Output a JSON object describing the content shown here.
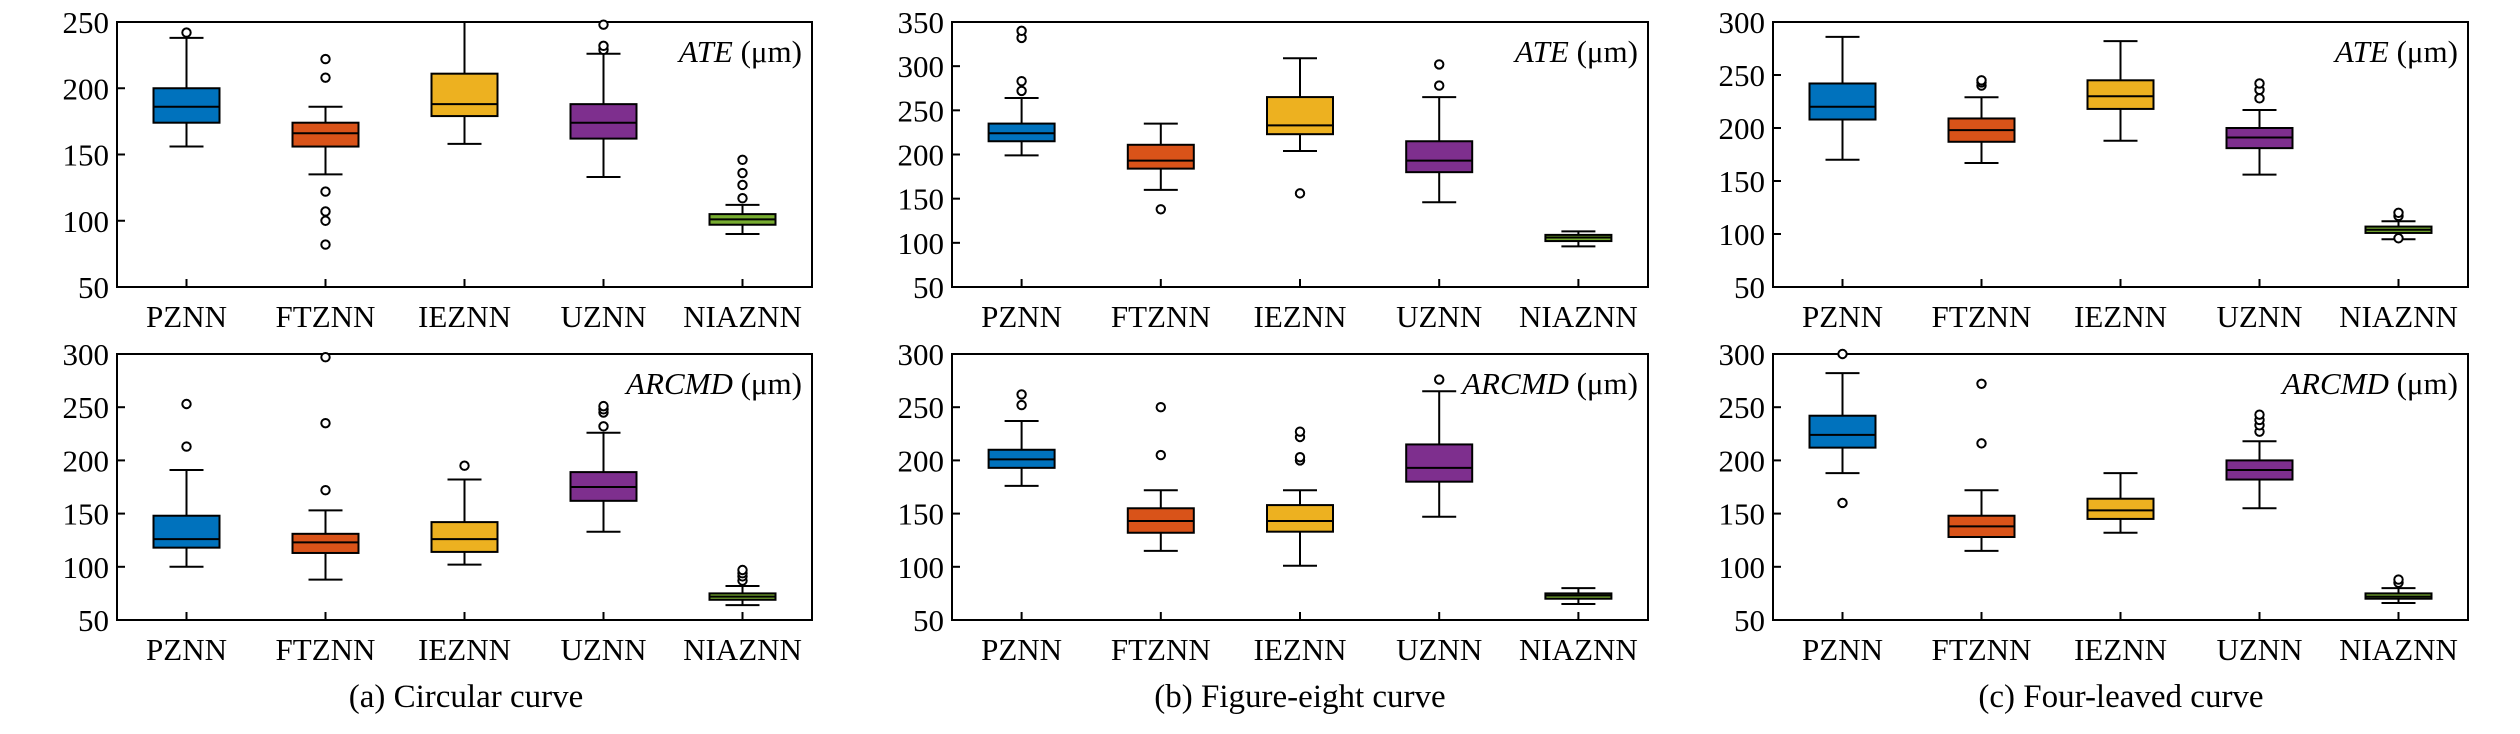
{
  "colors": {
    "PZNN": "#0072BD",
    "FTZNN": "#D95319",
    "IEZNN": "#EDB120",
    "UZNN": "#7E2F8E",
    "NIAZNN": "#77AC30"
  },
  "chart_data": [
    {
      "type": "box",
      "caption": "(a) Circular curve",
      "metric": "ATE",
      "unit": "(μm)",
      "categories": [
        "PZNN",
        "FTZNN",
        "IEZNN",
        "UZNN",
        "NIAZNN"
      ],
      "ylim": [
        50,
        250
      ],
      "yticks": [
        50,
        100,
        150,
        200,
        250
      ],
      "boxes": [
        {
          "q1": 174,
          "median": 186,
          "q3": 200,
          "whisker_low": 156,
          "whisker_high": 238,
          "outliers": [
            242
          ]
        },
        {
          "q1": 156,
          "median": 166,
          "q3": 174,
          "whisker_low": 135,
          "whisker_high": 186,
          "outliers": [
            208,
            222,
            122,
            107,
            100,
            82
          ]
        },
        {
          "q1": 179,
          "median": 188,
          "q3": 211,
          "whisker_low": 158,
          "whisker_high": 250,
          "outliers": []
        },
        {
          "q1": 162,
          "median": 174,
          "q3": 188,
          "whisker_low": 133,
          "whisker_high": 226,
          "outliers": [
            229,
            232,
            248
          ]
        },
        {
          "q1": 97,
          "median": 101,
          "q3": 105,
          "whisker_low": 90,
          "whisker_high": 112,
          "outliers": [
            117,
            127,
            136,
            146
          ]
        }
      ]
    },
    {
      "type": "box",
      "caption": "(b) Figure-eight curve",
      "metric": "ATE",
      "unit": "(μm)",
      "categories": [
        "PZNN",
        "FTZNN",
        "IEZNN",
        "UZNN",
        "NIAZNN"
      ],
      "ylim": [
        50,
        350
      ],
      "yticks": [
        50,
        100,
        150,
        200,
        250,
        300,
        350
      ],
      "boxes": [
        {
          "q1": 215,
          "median": 224,
          "q3": 235,
          "whisker_low": 199,
          "whisker_high": 264,
          "outliers": [
            272,
            283,
            332,
            340
          ]
        },
        {
          "q1": 184,
          "median": 193,
          "q3": 211,
          "whisker_low": 160,
          "whisker_high": 235,
          "outliers": [
            138
          ]
        },
        {
          "q1": 223,
          "median": 233,
          "q3": 265,
          "whisker_low": 204,
          "whisker_high": 309,
          "outliers": [
            156
          ]
        },
        {
          "q1": 180,
          "median": 193,
          "q3": 215,
          "whisker_low": 146,
          "whisker_high": 265,
          "outliers": [
            278,
            302
          ]
        },
        {
          "q1": 102,
          "median": 106,
          "q3": 109,
          "whisker_low": 96,
          "whisker_high": 113,
          "outliers": []
        }
      ]
    },
    {
      "type": "box",
      "caption": "(c) Four-leaved curve",
      "metric": "ATE",
      "unit": "(μm)",
      "categories": [
        "PZNN",
        "FTZNN",
        "IEZNN",
        "UZNN",
        "NIAZNN"
      ],
      "ylim": [
        50,
        300
      ],
      "yticks": [
        50,
        100,
        150,
        200,
        250,
        300
      ],
      "boxes": [
        {
          "q1": 208,
          "median": 220,
          "q3": 242,
          "whisker_low": 170,
          "whisker_high": 286,
          "outliers": []
        },
        {
          "q1": 187,
          "median": 198,
          "q3": 209,
          "whisker_low": 167,
          "whisker_high": 229,
          "outliers": [
            240,
            243,
            245
          ]
        },
        {
          "q1": 218,
          "median": 230,
          "q3": 245,
          "whisker_low": 188,
          "whisker_high": 282,
          "outliers": []
        },
        {
          "q1": 181,
          "median": 191,
          "q3": 200,
          "whisker_low": 156,
          "whisker_high": 217,
          "outliers": [
            228,
            236,
            242
          ]
        },
        {
          "q1": 101,
          "median": 104,
          "q3": 107,
          "whisker_low": 95,
          "whisker_high": 112,
          "outliers": [
            96,
            117,
            120
          ]
        }
      ]
    },
    {
      "type": "box",
      "caption": "",
      "metric": "ARCMD",
      "unit": "(μm)",
      "categories": [
        "PZNN",
        "FTZNN",
        "IEZNN",
        "UZNN",
        "NIAZNN"
      ],
      "ylim": [
        50,
        300
      ],
      "yticks": [
        50,
        100,
        150,
        200,
        250,
        300
      ],
      "boxes": [
        {
          "q1": 118,
          "median": 126,
          "q3": 148,
          "whisker_low": 100,
          "whisker_high": 191,
          "outliers": [
            213,
            253
          ]
        },
        {
          "q1": 113,
          "median": 123,
          "q3": 131,
          "whisker_low": 88,
          "whisker_high": 153,
          "outliers": [
            172,
            235,
            297
          ]
        },
        {
          "q1": 114,
          "median": 126,
          "q3": 142,
          "whisker_low": 102,
          "whisker_high": 182,
          "outliers": [
            195
          ]
        },
        {
          "q1": 162,
          "median": 175,
          "q3": 189,
          "whisker_low": 133,
          "whisker_high": 226,
          "outliers": [
            232,
            245,
            248,
            251
          ]
        },
        {
          "q1": 69,
          "median": 72,
          "q3": 75,
          "whisker_low": 64,
          "whisker_high": 82,
          "outliers": [
            87,
            91,
            94,
            97
          ]
        }
      ]
    },
    {
      "type": "box",
      "caption": "",
      "metric": "ARCMD",
      "unit": "(μm)",
      "categories": [
        "PZNN",
        "FTZNN",
        "IEZNN",
        "UZNN",
        "NIAZNN"
      ],
      "ylim": [
        50,
        300
      ],
      "yticks": [
        50,
        100,
        150,
        200,
        250,
        300
      ],
      "boxes": [
        {
          "q1": 193,
          "median": 201,
          "q3": 210,
          "whisker_low": 176,
          "whisker_high": 237,
          "outliers": [
            252,
            262
          ]
        },
        {
          "q1": 132,
          "median": 143,
          "q3": 155,
          "whisker_low": 115,
          "whisker_high": 172,
          "outliers": [
            205,
            250
          ]
        },
        {
          "q1": 133,
          "median": 143,
          "q3": 158,
          "whisker_low": 101,
          "whisker_high": 172,
          "outliers": [
            200,
            203,
            222,
            227
          ]
        },
        {
          "q1": 180,
          "median": 193,
          "q3": 215,
          "whisker_low": 147,
          "whisker_high": 265,
          "outliers": [
            276
          ]
        },
        {
          "q1": 70,
          "median": 73,
          "q3": 75,
          "whisker_low": 65,
          "whisker_high": 80,
          "outliers": []
        }
      ]
    },
    {
      "type": "box",
      "caption": "",
      "metric": "ARCMD",
      "unit": "(μm)",
      "categories": [
        "PZNN",
        "FTZNN",
        "IEZNN",
        "UZNN",
        "NIAZNN"
      ],
      "ylim": [
        50,
        300
      ],
      "yticks": [
        50,
        100,
        150,
        200,
        250,
        300
      ],
      "boxes": [
        {
          "q1": 212,
          "median": 224,
          "q3": 242,
          "whisker_low": 188,
          "whisker_high": 282,
          "outliers": [
            160,
            300
          ]
        },
        {
          "q1": 128,
          "median": 138,
          "q3": 148,
          "whisker_low": 115,
          "whisker_high": 172,
          "outliers": [
            216,
            272
          ]
        },
        {
          "q1": 145,
          "median": 153,
          "q3": 164,
          "whisker_low": 132,
          "whisker_high": 188,
          "outliers": []
        },
        {
          "q1": 182,
          "median": 191,
          "q3": 200,
          "whisker_low": 155,
          "whisker_high": 218,
          "outliers": [
            227,
            233,
            238,
            243
          ]
        },
        {
          "q1": 70,
          "median": 72,
          "q3": 75,
          "whisker_low": 66,
          "whisker_high": 80,
          "outliers": [
            85,
            88
          ]
        }
      ]
    }
  ]
}
